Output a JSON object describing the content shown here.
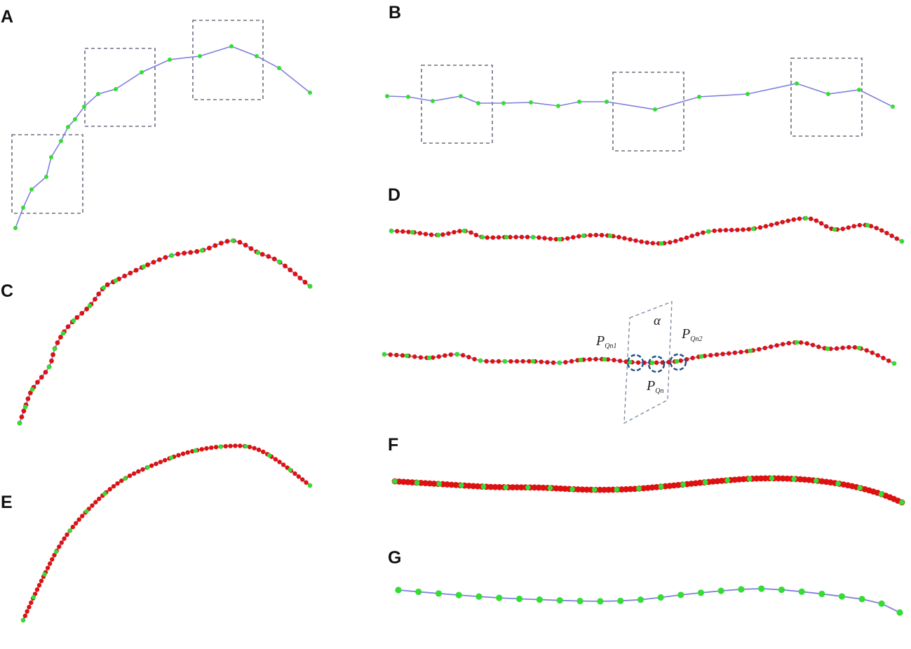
{
  "panels": {
    "A": "A",
    "B": "B",
    "C": "C",
    "D": "D",
    "E": "E",
    "F": "F",
    "G": "G"
  },
  "annotations": {
    "alpha": "α",
    "p_left": "P",
    "p_left_sub": "Qn1",
    "p_right": "P",
    "p_right_sub": "Qn2",
    "p_mid": "P",
    "p_mid_sub": "Qn"
  },
  "colors": {
    "curve": "#7f7fdf",
    "control_point": "#33dd33",
    "interpolated_point": "#dd1111",
    "selection_box": "#6a7080",
    "marker_circle": "#1f4f88"
  }
}
